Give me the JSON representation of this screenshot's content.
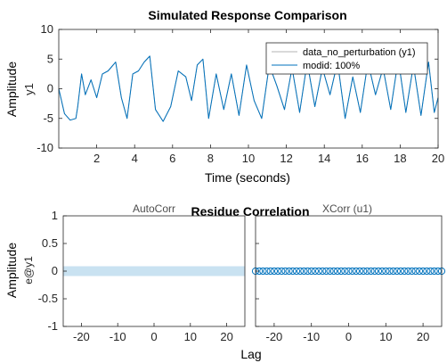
{
  "chart_data": [
    {
      "type": "line",
      "title": "Simulated Response Comparison",
      "xlabel": "Time (seconds)",
      "ylabel": "Amplitude",
      "channel_label": "y1",
      "xlim": [
        0,
        20
      ],
      "ylim": [
        -10,
        10
      ],
      "xticks": [
        2,
        4,
        6,
        8,
        10,
        12,
        14,
        16,
        18,
        20
      ],
      "yticks": [
        -10,
        -5,
        0,
        5,
        10
      ],
      "grid": false,
      "legend_position": "top-right",
      "series": [
        {
          "name": "data_no_perturbation (y1)",
          "color": "#b3b3b3",
          "x": [
            0,
            0.3,
            0.6,
            0.9,
            1.0,
            1.2,
            1.4,
            1.7,
            2.0,
            2.3,
            2.6,
            3.0,
            3.3,
            3.6,
            3.9,
            4.2,
            4.5,
            4.8,
            5.1,
            5.5,
            5.9,
            6.3,
            6.7,
            7.0,
            7.3,
            7.6,
            7.9,
            8.3,
            8.7,
            9.1,
            9.5,
            9.9,
            10.3,
            10.7,
            11.1,
            11.5,
            11.9,
            12.3,
            12.7,
            13.1,
            13.5,
            13.9,
            14.3,
            14.7,
            15.1,
            15.5,
            15.9,
            16.3,
            16.7,
            17.1,
            17.5,
            17.9,
            18.3,
            18.7,
            19.1,
            19.5,
            19.8,
            20
          ],
          "y": [
            0,
            -4.2,
            -5.3,
            -5.0,
            -3.0,
            2.5,
            -1.0,
            1.5,
            -1.5,
            2.5,
            3.0,
            4.5,
            -1.5,
            -5.0,
            2.5,
            3.0,
            4.5,
            5.5,
            -3.5,
            -5.5,
            -3.0,
            3.0,
            2.0,
            -2.0,
            4.0,
            5.0,
            -5.0,
            2.5,
            -3.5,
            2.5,
            -4.5,
            4.0,
            -2.0,
            -5.0,
            4.0,
            0.5,
            -3.5,
            3.5,
            -4.0,
            4.5,
            -3.0,
            3.5,
            -1.0,
            4.5,
            -5.0,
            2.0,
            -4.0,
            4.5,
            -1.0,
            3.5,
            -3.5,
            5.0,
            -4.0,
            4.0,
            -4.5,
            4.5,
            -4.0,
            -1.5
          ]
        },
        {
          "name": "modid: 100%",
          "color": "#0072bd",
          "x": [
            0,
            0.3,
            0.6,
            0.9,
            1.0,
            1.2,
            1.4,
            1.7,
            2.0,
            2.3,
            2.6,
            3.0,
            3.3,
            3.6,
            3.9,
            4.2,
            4.5,
            4.8,
            5.1,
            5.5,
            5.9,
            6.3,
            6.7,
            7.0,
            7.3,
            7.6,
            7.9,
            8.3,
            8.7,
            9.1,
            9.5,
            9.9,
            10.3,
            10.7,
            11.1,
            11.5,
            11.9,
            12.3,
            12.7,
            13.1,
            13.5,
            13.9,
            14.3,
            14.7,
            15.1,
            15.5,
            15.9,
            16.3,
            16.7,
            17.1,
            17.5,
            17.9,
            18.3,
            18.7,
            19.1,
            19.5,
            19.8,
            20
          ],
          "y": [
            0,
            -4.2,
            -5.3,
            -5.0,
            -3.0,
            2.5,
            -1.0,
            1.5,
            -1.5,
            2.5,
            3.0,
            4.5,
            -1.5,
            -5.0,
            2.5,
            3.0,
            4.5,
            5.5,
            -3.5,
            -5.5,
            -3.0,
            3.0,
            2.0,
            -2.0,
            4.0,
            5.0,
            -5.0,
            2.5,
            -3.5,
            2.5,
            -4.5,
            4.0,
            -2.0,
            -5.0,
            4.0,
            0.5,
            -3.5,
            3.5,
            -4.0,
            4.5,
            -3.0,
            3.5,
            -1.0,
            4.5,
            -5.0,
            2.0,
            -4.0,
            4.5,
            -1.0,
            3.5,
            -3.5,
            5.0,
            -4.0,
            4.0,
            -4.5,
            4.5,
            -4.0,
            -1.5
          ]
        }
      ]
    },
    {
      "type": "scatter",
      "title": "Residue Correlation",
      "xlabel": "Lag",
      "ylabel": "Amplitude",
      "channel_label": "e@y1",
      "panels": [
        {
          "subtitle": "AutoCorr",
          "xlim": [
            -25,
            25
          ],
          "ylim": [
            -1,
            1
          ],
          "xticks": [
            -20,
            -10,
            0,
            10,
            20
          ],
          "yticks": [
            -1,
            -0.5,
            0,
            0.5,
            1
          ],
          "confidence_band": [
            -0.03,
            0.03
          ],
          "band_color": "#c9e2f1",
          "values": []
        },
        {
          "subtitle": "XCorr (u1)",
          "xlim": [
            -25,
            25
          ],
          "ylim": [
            -1,
            1
          ],
          "xticks": [
            -20,
            -10,
            0,
            10,
            20
          ],
          "marker_color": "#0072bd",
          "lags": [
            -25,
            -24,
            -23,
            -22,
            -21,
            -20,
            -19,
            -18,
            -17,
            -16,
            -15,
            -14,
            -13,
            -12,
            -11,
            -10,
            -9,
            -8,
            -7,
            -6,
            -5,
            -4,
            -3,
            -2,
            -1,
            0,
            1,
            2,
            3,
            4,
            5,
            6,
            7,
            8,
            9,
            10,
            11,
            12,
            13,
            14,
            15,
            16,
            17,
            18,
            19,
            20,
            21,
            22,
            23,
            24,
            25
          ],
          "values": [
            0,
            0,
            0,
            0,
            0,
            0,
            0,
            0,
            0,
            0,
            0,
            0,
            0,
            0,
            0,
            0,
            0,
            0,
            0,
            0,
            0,
            0,
            0,
            0,
            0,
            0,
            0,
            0,
            0,
            0,
            0,
            0,
            0,
            0,
            0,
            0,
            0,
            0,
            0,
            0,
            0,
            0,
            0,
            0,
            0,
            0,
            0,
            0,
            0,
            0,
            0
          ]
        }
      ]
    }
  ]
}
